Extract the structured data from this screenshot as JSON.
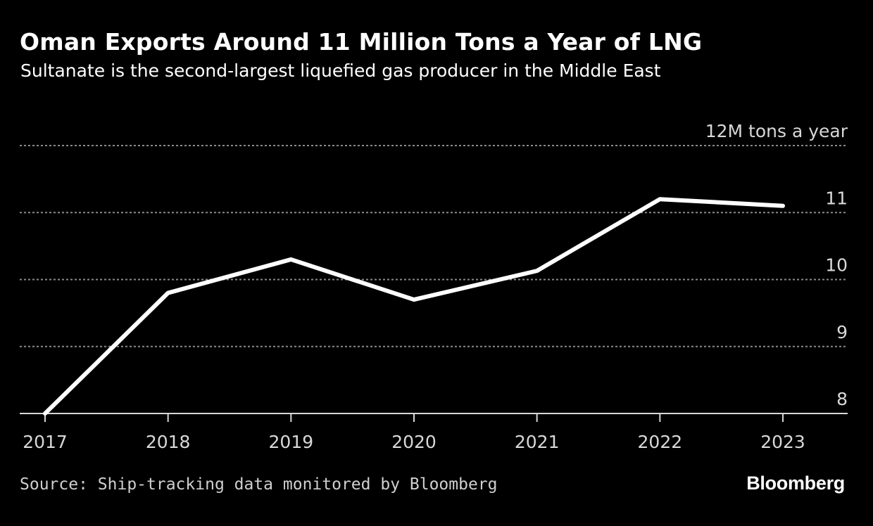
{
  "chart_data": {
    "type": "line",
    "title": "Oman Exports Around 11 Million Tons a Year of LNG",
    "subtitle": "Sultanate is the second-largest liquefied gas producer in the Middle East",
    "unit_label": "12M tons a year",
    "categories": [
      "2017",
      "2018",
      "2019",
      "2020",
      "2021",
      "2022",
      "2023"
    ],
    "series": [
      {
        "name": "LNG exports",
        "values": [
          8.0,
          9.8,
          10.3,
          9.7,
          10.13,
          11.2,
          11.1
        ]
      }
    ],
    "ylim": [
      8,
      12
    ],
    "yticks": [
      {
        "value": 8,
        "label": "8"
      },
      {
        "value": 9,
        "label": "9"
      },
      {
        "value": 10,
        "label": "10"
      },
      {
        "value": 11,
        "label": "11"
      },
      {
        "value": 12,
        "label": "12M tons a year"
      }
    ],
    "xlabel": "",
    "ylabel": "",
    "grid": true,
    "source": "Source: Ship-tracking data monitored by Bloomberg",
    "brand": "Bloomberg",
    "colors": {
      "background": "#000000",
      "line": "#ffffff",
      "grid": "#8a8a8a",
      "axis": "#d8d8d8"
    }
  }
}
